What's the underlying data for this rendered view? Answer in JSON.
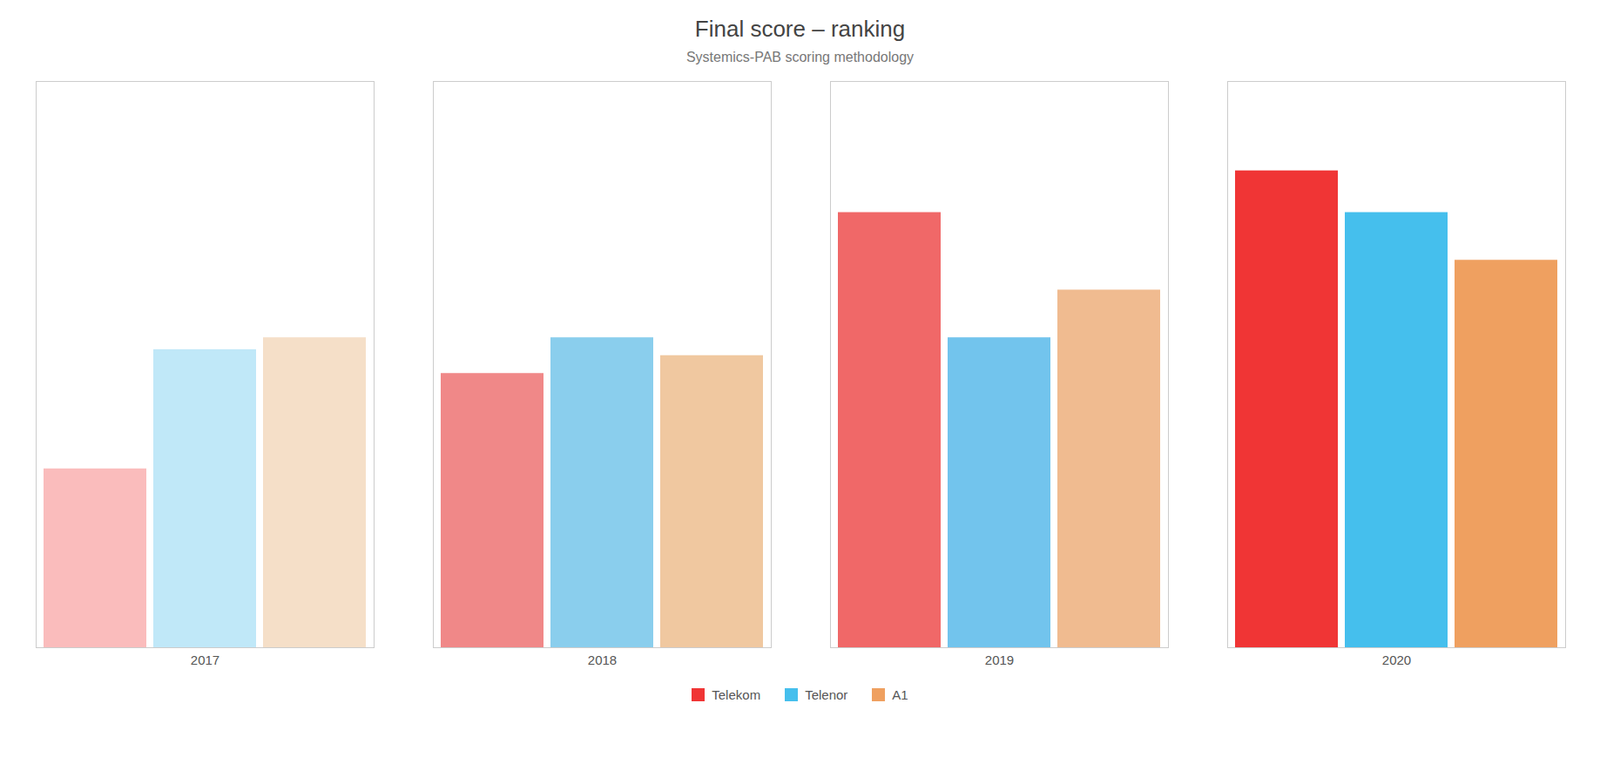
{
  "chart_data": {
    "type": "bar",
    "title": "Final score – ranking",
    "subtitle": "Systemics-PAB scoring methodology",
    "categories": [
      "2017",
      "2018",
      "2019",
      "2020"
    ],
    "series": [
      {
        "name": "Telekom",
        "color": "#F03535",
        "colors": [
          "#FABCBC",
          "#F08888",
          "#F06868",
          "#F03535"
        ],
        "values": [
          30,
          46,
          73,
          80
        ]
      },
      {
        "name": "Telenor",
        "color": "#45BFED",
        "colors": [
          "#C0E8F8",
          "#8ACEED",
          "#72C4ED",
          "#45BFED"
        ],
        "values": [
          50,
          52,
          52,
          73
        ]
      },
      {
        "name": "A1",
        "color": "#EFA060",
        "colors": [
          "#F5DFC8",
          "#F0C8A0",
          "#F0BB90",
          "#EFA060"
        ],
        "values": [
          52,
          49,
          60,
          65
        ]
      }
    ],
    "ylim": [
      0,
      95
    ],
    "grid": false,
    "legend": "bottom",
    "tick_labels": "x"
  }
}
